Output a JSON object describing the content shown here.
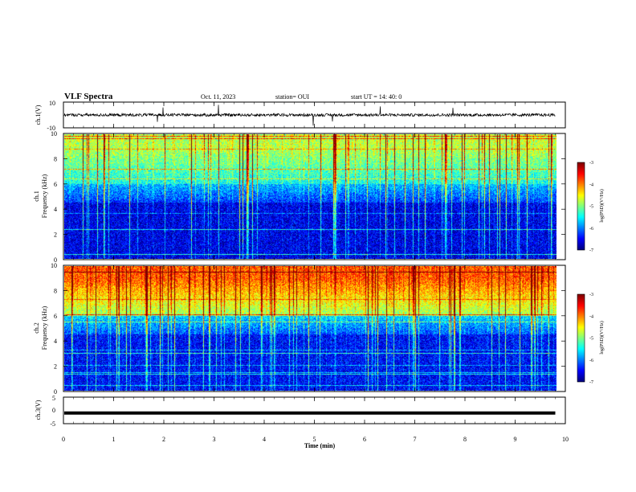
{
  "header": {
    "title": "VLF Spectra",
    "date": "Oct. 11, 2023",
    "station": "station= OUI",
    "start": "start  UT =   14: 40: 0"
  },
  "chart_data": [
    {
      "type": "line",
      "name": "ch1-waveform",
      "ylabel": "ch.1(V)",
      "ylim": [
        -10,
        10
      ],
      "y_ticks": [
        "10",
        "-10"
      ],
      "xlim": [
        0,
        10
      ],
      "baseline": 0,
      "note_trace": "noisy broadband trace near 0 V spanning 0 to ~9.8 min"
    },
    {
      "type": "heatmap",
      "name": "ch1-spectrogram",
      "ylabel": "ch.1\nFrequency (kHz)",
      "ylabel_lines": [
        "ch.1",
        "Frequency (kHz)"
      ],
      "ylim": [
        0,
        10
      ],
      "y_ticks": [
        "0",
        "2",
        "4",
        "6",
        "8",
        "10"
      ],
      "xlim": [
        0,
        10
      ],
      "colorbar": {
        "label": "log(PSD)(V²/Hz)",
        "range": [
          -7,
          -3
        ],
        "ticks": [
          "-3",
          "-4",
          "-5",
          "-6",
          "-7"
        ]
      },
      "intensity_profile": {
        "high_band_kHz": [
          6,
          10
        ],
        "high_level": -4.8,
        "low_level": -6.3
      }
    },
    {
      "type": "heatmap",
      "name": "ch2-spectrogram",
      "ylabel": "ch.2\nFrequency (kHz)",
      "ylabel_lines": [
        "ch.2",
        "Frequency (kHz)"
      ],
      "ylim": [
        0,
        10
      ],
      "y_ticks": [
        "0",
        "2",
        "4",
        "6",
        "8",
        "10"
      ],
      "xlim": [
        0,
        10
      ],
      "colorbar": {
        "label": "log(PSD)(V²/Hz)",
        "range": [
          -7,
          -3
        ],
        "ticks": [
          "-3",
          "-4",
          "-5",
          "-6",
          "-7"
        ]
      },
      "intensity_profile": {
        "high_band_kHz": [
          6,
          10
        ],
        "high_level": -3.9,
        "low_level": -6.2
      }
    },
    {
      "type": "line",
      "name": "ch3-waveform",
      "ylabel": "ch.3(V)",
      "ylim": [
        -5,
        5
      ],
      "y_ticks": [
        "5",
        "0",
        "-5"
      ],
      "xlim": [
        0,
        10
      ],
      "values_constant": -1
    }
  ],
  "x_axis": {
    "label": "Time  (min)",
    "ticks": [
      "0",
      "1",
      "2",
      "3",
      "4",
      "5",
      "6",
      "7",
      "8",
      "9",
      "10"
    ]
  },
  "colors": {
    "colormap": [
      "#00007f",
      "#0000ff",
      "#0080ff",
      "#00ffff",
      "#80ff80",
      "#ffff00",
      "#ff8000",
      "#ff0000",
      "#800000"
    ],
    "trace": "#000000"
  }
}
